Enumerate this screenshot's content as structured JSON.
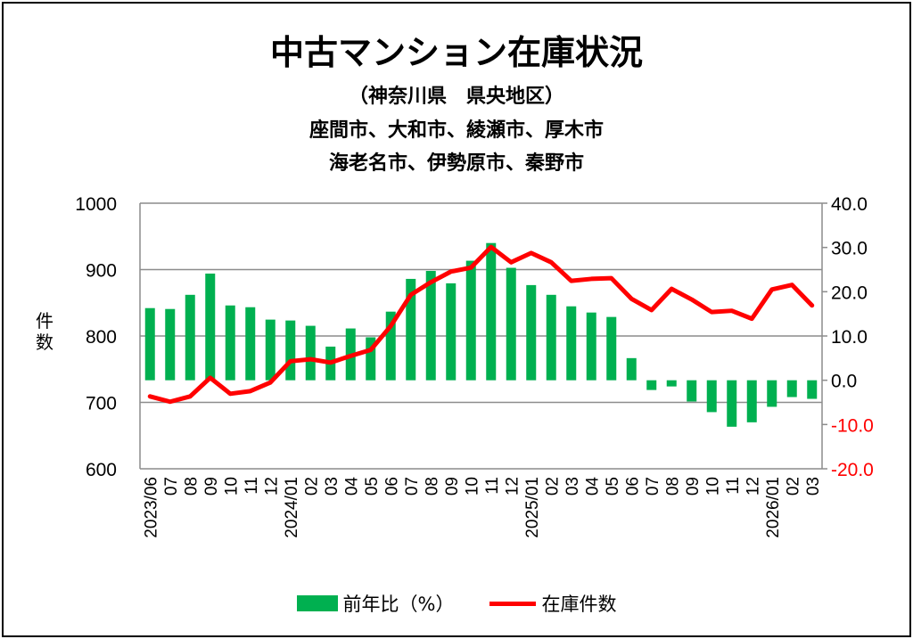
{
  "title": "中古マンション在庫状況",
  "subtitle1": "（神奈川県　県央地区）",
  "subtitle2": "座間市、大和市、綾瀬市、厚木市",
  "subtitle3": "海老名市、伊勢原市、秦野市",
  "chart_data": {
    "type": "bar+line",
    "categories": [
      "2023/06",
      "07",
      "08",
      "09",
      "10",
      "11",
      "12",
      "2024/01",
      "02",
      "03",
      "04",
      "05",
      "06",
      "07",
      "08",
      "09",
      "10",
      "11",
      "12",
      "2025/01",
      "02",
      "03",
      "04",
      "05",
      "06",
      "07",
      "08",
      "09",
      "10",
      "11",
      "12",
      "2026/01",
      "02",
      "03"
    ],
    "ylabel": "件数",
    "y_left": {
      "range": [
        600,
        1000
      ],
      "ticks": [
        "600",
        "700",
        "800",
        "900",
        "1000"
      ]
    },
    "y_right": {
      "range": [
        -20,
        40
      ],
      "ticks": [
        "-20.0",
        "-10.0",
        "0.0",
        "10.0",
        "20.0",
        "30.0",
        "40.0"
      ]
    },
    "grid": true,
    "legend_position": "bottom",
    "series": [
      {
        "name": "前年比（%）",
        "type": "bar",
        "axis": "right",
        "color": "#00b050",
        "values": [
          16.3,
          16.1,
          19.3,
          24.1,
          16.9,
          16.5,
          13.7,
          13.5,
          12.3,
          7.6,
          11.7,
          9.7,
          15.5,
          22.9,
          24.7,
          21.9,
          27.0,
          31.0,
          25.4,
          21.5,
          19.3,
          16.7,
          15.3,
          14.3,
          5.0,
          -2.2,
          -1.4,
          -4.8,
          -7.2,
          -10.5,
          -9.5,
          -6.0,
          -3.8,
          -4.2
        ]
      },
      {
        "name": "在庫件数",
        "type": "line",
        "axis": "left",
        "color": "#ff0000",
        "values": [
          709,
          701,
          709,
          737,
          713,
          717,
          730,
          762,
          765,
          760,
          770,
          779,
          815,
          862,
          881,
          897,
          903,
          934,
          911,
          925,
          911,
          883,
          886,
          887,
          856,
          839,
          871,
          855,
          836,
          838,
          826,
          870,
          877,
          846
        ]
      }
    ],
    "negative_tick_color": "#ff0000"
  }
}
